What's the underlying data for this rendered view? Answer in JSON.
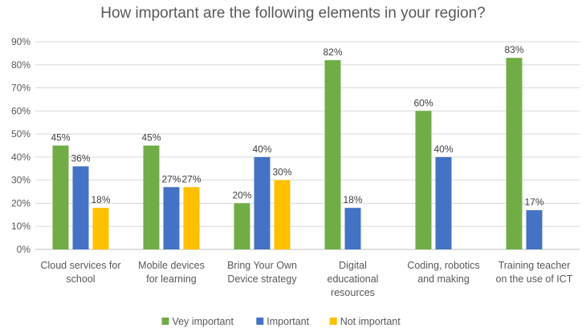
{
  "chart_data": {
    "type": "bar",
    "title": "How important are the following elements in your region?",
    "categories": [
      [
        "Cloud services for",
        "school"
      ],
      [
        "Mobile devices",
        "for learning"
      ],
      [
        "Bring Your Own",
        "Device strategy"
      ],
      [
        "Digital",
        "educational",
        "resources"
      ],
      [
        "Coding, robotics",
        "and making"
      ],
      [
        "Training teacher",
        "on the use of ICT"
      ]
    ],
    "series": [
      {
        "name": "Vey important",
        "color": "#70AD47",
        "values": [
          45,
          45,
          20,
          82,
          60,
          83
        ]
      },
      {
        "name": "Important",
        "color": "#4472C4",
        "values": [
          36,
          27,
          40,
          18,
          40,
          17
        ]
      },
      {
        "name": "Not important",
        "color": "#FFC000",
        "values": [
          18,
          27,
          30,
          null,
          null,
          null
        ]
      }
    ],
    "ylim": [
      0,
      90
    ],
    "yticks": [
      "0%",
      "10%",
      "20%",
      "30%",
      "40%",
      "50%",
      "60%",
      "70%",
      "80%",
      "90%"
    ],
    "value_suffix": "%",
    "grid": true,
    "legend": "bottom"
  }
}
